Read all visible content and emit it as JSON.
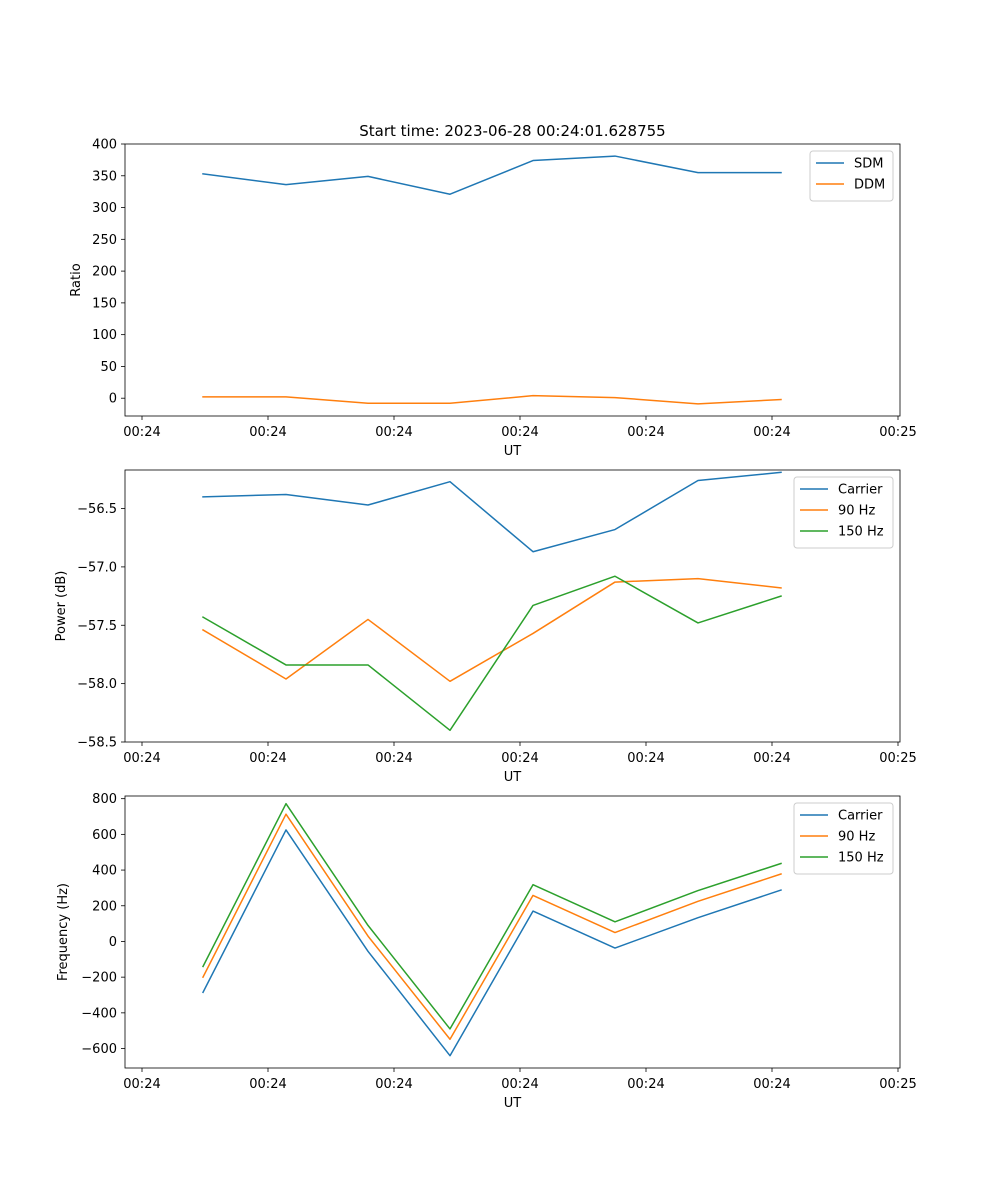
{
  "figure_title": "Start time: 2023-06-28 00:24:01.628755",
  "colors": {
    "blue": "#1f77b4",
    "orange": "#ff7f0e",
    "green": "#2ca02c"
  },
  "chart_data": [
    {
      "type": "line",
      "xlabel": "UT",
      "ylabel": "Ratio",
      "x_tick_labels": [
        "00:24",
        "00:24",
        "00:24",
        "00:24",
        "00:24",
        "00:24",
        "00:25"
      ],
      "y_ticks": [
        0,
        50,
        100,
        150,
        200,
        250,
        300,
        350,
        400
      ],
      "y_tick_labels": [
        "0",
        "50",
        "100",
        "150",
        "200",
        "250",
        "300",
        "350",
        "400"
      ],
      "ylim": [
        -28,
        400
      ],
      "x_tick_count": 7,
      "x_points": 8,
      "legend_position": "upper right",
      "series": [
        {
          "name": "SDM",
          "color": "#1f77b4",
          "values": [
            353,
            336,
            349,
            321,
            374,
            381,
            355,
            355
          ]
        },
        {
          "name": "DDM",
          "color": "#ff7f0e",
          "values": [
            2,
            2,
            -8,
            -8,
            4,
            1,
            -9,
            -2
          ]
        }
      ]
    },
    {
      "type": "line",
      "xlabel": "UT",
      "ylabel": "Power (dB)",
      "x_tick_labels": [
        "00:24",
        "00:24",
        "00:24",
        "00:24",
        "00:24",
        "00:24",
        "00:25"
      ],
      "y_ticks": [
        -58.5,
        -58.0,
        -57.5,
        -57.0,
        -56.5
      ],
      "y_tick_labels": [
        "−58.5",
        "−58.0",
        "−57.5",
        "−57.0",
        "−56.5"
      ],
      "ylim": [
        -58.5,
        -56.17
      ],
      "x_tick_count": 7,
      "x_points": 8,
      "legend_position": "upper right",
      "series": [
        {
          "name": "Carrier",
          "color": "#1f77b4",
          "values": [
            -56.4,
            -56.38,
            -56.47,
            -56.27,
            -56.87,
            -56.68,
            -56.26,
            -56.19
          ]
        },
        {
          "name": "90 Hz",
          "color": "#ff7f0e",
          "values": [
            -57.54,
            -57.96,
            -57.45,
            -57.98,
            -57.57,
            -57.13,
            -57.1,
            -57.18
          ]
        },
        {
          "name": "150 Hz",
          "color": "#2ca02c",
          "values": [
            -57.43,
            -57.84,
            -57.84,
            -58.4,
            -57.33,
            -57.08,
            -57.48,
            -57.25
          ]
        }
      ]
    },
    {
      "type": "line",
      "xlabel": "UT",
      "ylabel": "Frequency (Hz)",
      "x_tick_labels": [
        "00:24",
        "00:24",
        "00:24",
        "00:24",
        "00:24",
        "00:24",
        "00:25"
      ],
      "y_ticks": [
        -600,
        -400,
        -200,
        0,
        200,
        400,
        600,
        800
      ],
      "y_tick_labels": [
        "−600",
        "−400",
        "−200",
        "0",
        "200",
        "400",
        "600",
        "800"
      ],
      "ylim": [
        -709,
        815
      ],
      "x_tick_count": 7,
      "x_points": 8,
      "legend_position": "upper right",
      "series": [
        {
          "name": "Carrier",
          "color": "#1f77b4",
          "values": [
            -285,
            625,
            -55,
            -640,
            170,
            -37,
            133,
            288
          ]
        },
        {
          "name": "90 Hz",
          "color": "#ff7f0e",
          "values": [
            -200,
            713,
            30,
            -548,
            258,
            50,
            225,
            378
          ]
        },
        {
          "name": "150 Hz",
          "color": "#2ca02c",
          "values": [
            -140,
            772,
            90,
            -490,
            318,
            110,
            285,
            437
          ]
        }
      ]
    }
  ]
}
